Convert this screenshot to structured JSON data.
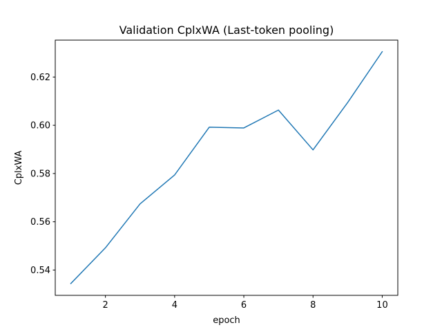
{
  "chart_data": {
    "type": "line",
    "title": "Validation CplxWA (Last-token pooling)",
    "xlabel": "epoch",
    "ylabel": "CplxWA",
    "x": [
      1,
      2,
      3,
      4,
      5,
      6,
      7,
      8,
      9,
      10
    ],
    "xlim": [
      0.55,
      10.45
    ],
    "ylim": [
      0.5295,
      0.6353
    ],
    "xticks": [
      2,
      4,
      6,
      8,
      10
    ],
    "yticks": [
      0.54,
      0.56,
      0.58,
      0.6,
      0.62
    ],
    "ytick_labels": [
      "0.54",
      "0.56",
      "0.58",
      "0.60",
      "0.62"
    ],
    "grid": false,
    "series": [
      {
        "color": "#1f77b4",
        "values": [
          0.5344,
          0.5492,
          0.5674,
          0.5794,
          0.5992,
          0.5989,
          0.6063,
          0.5898,
          0.6094,
          0.6305
        ]
      }
    ]
  }
}
